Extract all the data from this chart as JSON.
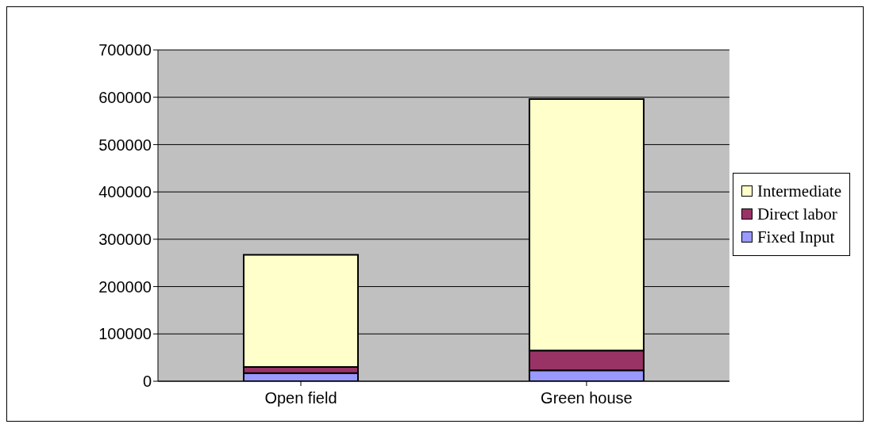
{
  "chart_data": {
    "type": "bar",
    "stacked": true,
    "categories": [
      "Open field",
      "Green house"
    ],
    "series": [
      {
        "name": "Fixed Input",
        "color": "#9999ff",
        "values": [
          17000,
          23000
        ]
      },
      {
        "name": "Direct labor",
        "color": "#993366",
        "values": [
          13000,
          42000
        ]
      },
      {
        "name": "Intermediate",
        "color": "#ffffcc",
        "values": [
          237000,
          531000
        ]
      }
    ],
    "ylim": [
      0,
      700000
    ],
    "yticks": [
      0,
      100000,
      200000,
      300000,
      400000,
      500000,
      600000,
      700000
    ],
    "grid": "y",
    "legend": "right"
  }
}
